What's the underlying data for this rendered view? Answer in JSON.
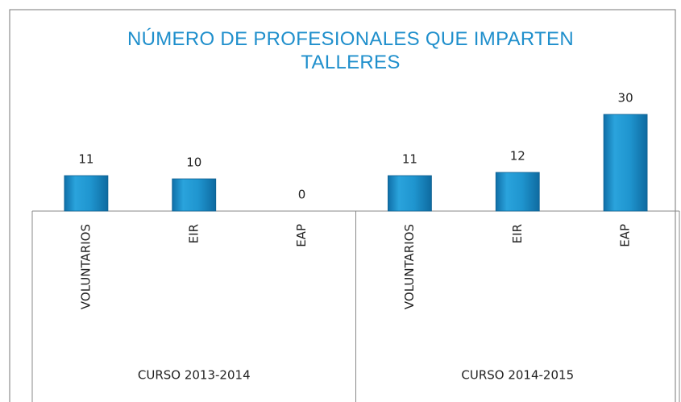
{
  "chart_data": {
    "type": "bar",
    "title": "NÚMERO DE PROFESIONALES QUE IMPARTEN TALLERES",
    "categories": [
      "VOLUNTARIOS",
      "EIR",
      "EAP",
      "VOLUNTARIOS",
      "EIR",
      "EAP"
    ],
    "groups": [
      "CURSO 2013-2014",
      "CURSO 2014-2015"
    ],
    "values": [
      11,
      10,
      0,
      11,
      12,
      30
    ],
    "color": "#1f95cf"
  }
}
